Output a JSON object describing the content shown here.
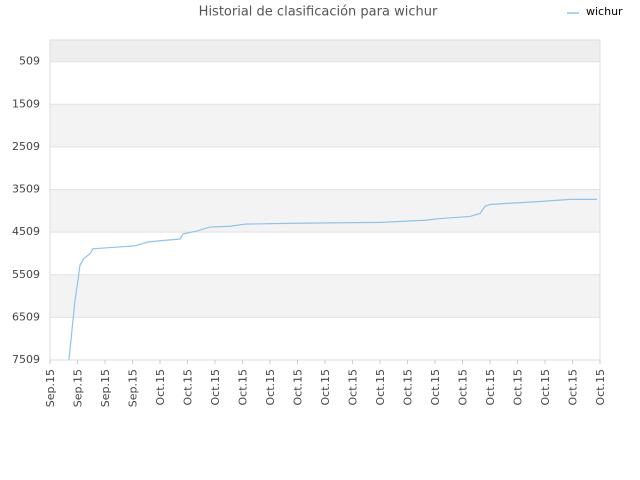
{
  "chart_data": {
    "type": "line",
    "title": "Historial de clasificación para wichur",
    "x": [
      0.69,
      0.8,
      0.91,
      1.02,
      1.09,
      1.24,
      1.45,
      1.56,
      2,
      3.09,
      3.56,
      4,
      4.73,
      4.84,
      5.35,
      5.82,
      6.55,
      7.09,
      8.91,
      12,
      13.64,
      14.18,
      15.27,
      15.64,
      15.82,
      16,
      16.73,
      17.82,
      18.91,
      19.89
    ],
    "series": [
      {
        "name": "wichur",
        "color": "#8cc4ec",
        "values": [
          7509,
          6800,
          6100,
          5630,
          5280,
          5120,
          5020,
          4900,
          4880,
          4830,
          4740,
          4710,
          4670,
          4550,
          4480,
          4390,
          4370,
          4320,
          4300,
          4280,
          4230,
          4190,
          4140,
          4070,
          3900,
          3860,
          3830,
          3790,
          3740,
          3740
        ]
      }
    ],
    "xlim": [
      0,
      20
    ],
    "xticks": [
      {
        "value": 0,
        "label": "Sep.15"
      },
      {
        "value": 1,
        "label": "Sep.15"
      },
      {
        "value": 2,
        "label": "Sep.15"
      },
      {
        "value": 3,
        "label": "Sep.15"
      },
      {
        "value": 4,
        "label": "Oct.15"
      },
      {
        "value": 5,
        "label": "Oct.15"
      },
      {
        "value": 6,
        "label": "Oct.15"
      },
      {
        "value": 7,
        "label": "Oct.15"
      },
      {
        "value": 8,
        "label": "Oct.15"
      },
      {
        "value": 9,
        "label": "Oct.15"
      },
      {
        "value": 10,
        "label": "Oct.15"
      },
      {
        "value": 11,
        "label": "Oct.15"
      },
      {
        "value": 12,
        "label": "Oct.15"
      },
      {
        "value": 13,
        "label": "Oct.15"
      },
      {
        "value": 14,
        "label": "Oct.15"
      },
      {
        "value": 15,
        "label": "Oct.15"
      },
      {
        "value": 16,
        "label": "Oct.15"
      },
      {
        "value": 17,
        "label": "Oct.15"
      },
      {
        "value": 18,
        "label": "Oct.15"
      },
      {
        "value": 19,
        "label": "Oct.15"
      },
      {
        "value": 20,
        "label": "Oct.15"
      }
    ],
    "ylim": [
      7509,
      0
    ],
    "yticks": [
      509,
      1509,
      2509,
      3509,
      4509,
      5509,
      6509,
      7509
    ],
    "grid": true,
    "legend": "top-right"
  }
}
